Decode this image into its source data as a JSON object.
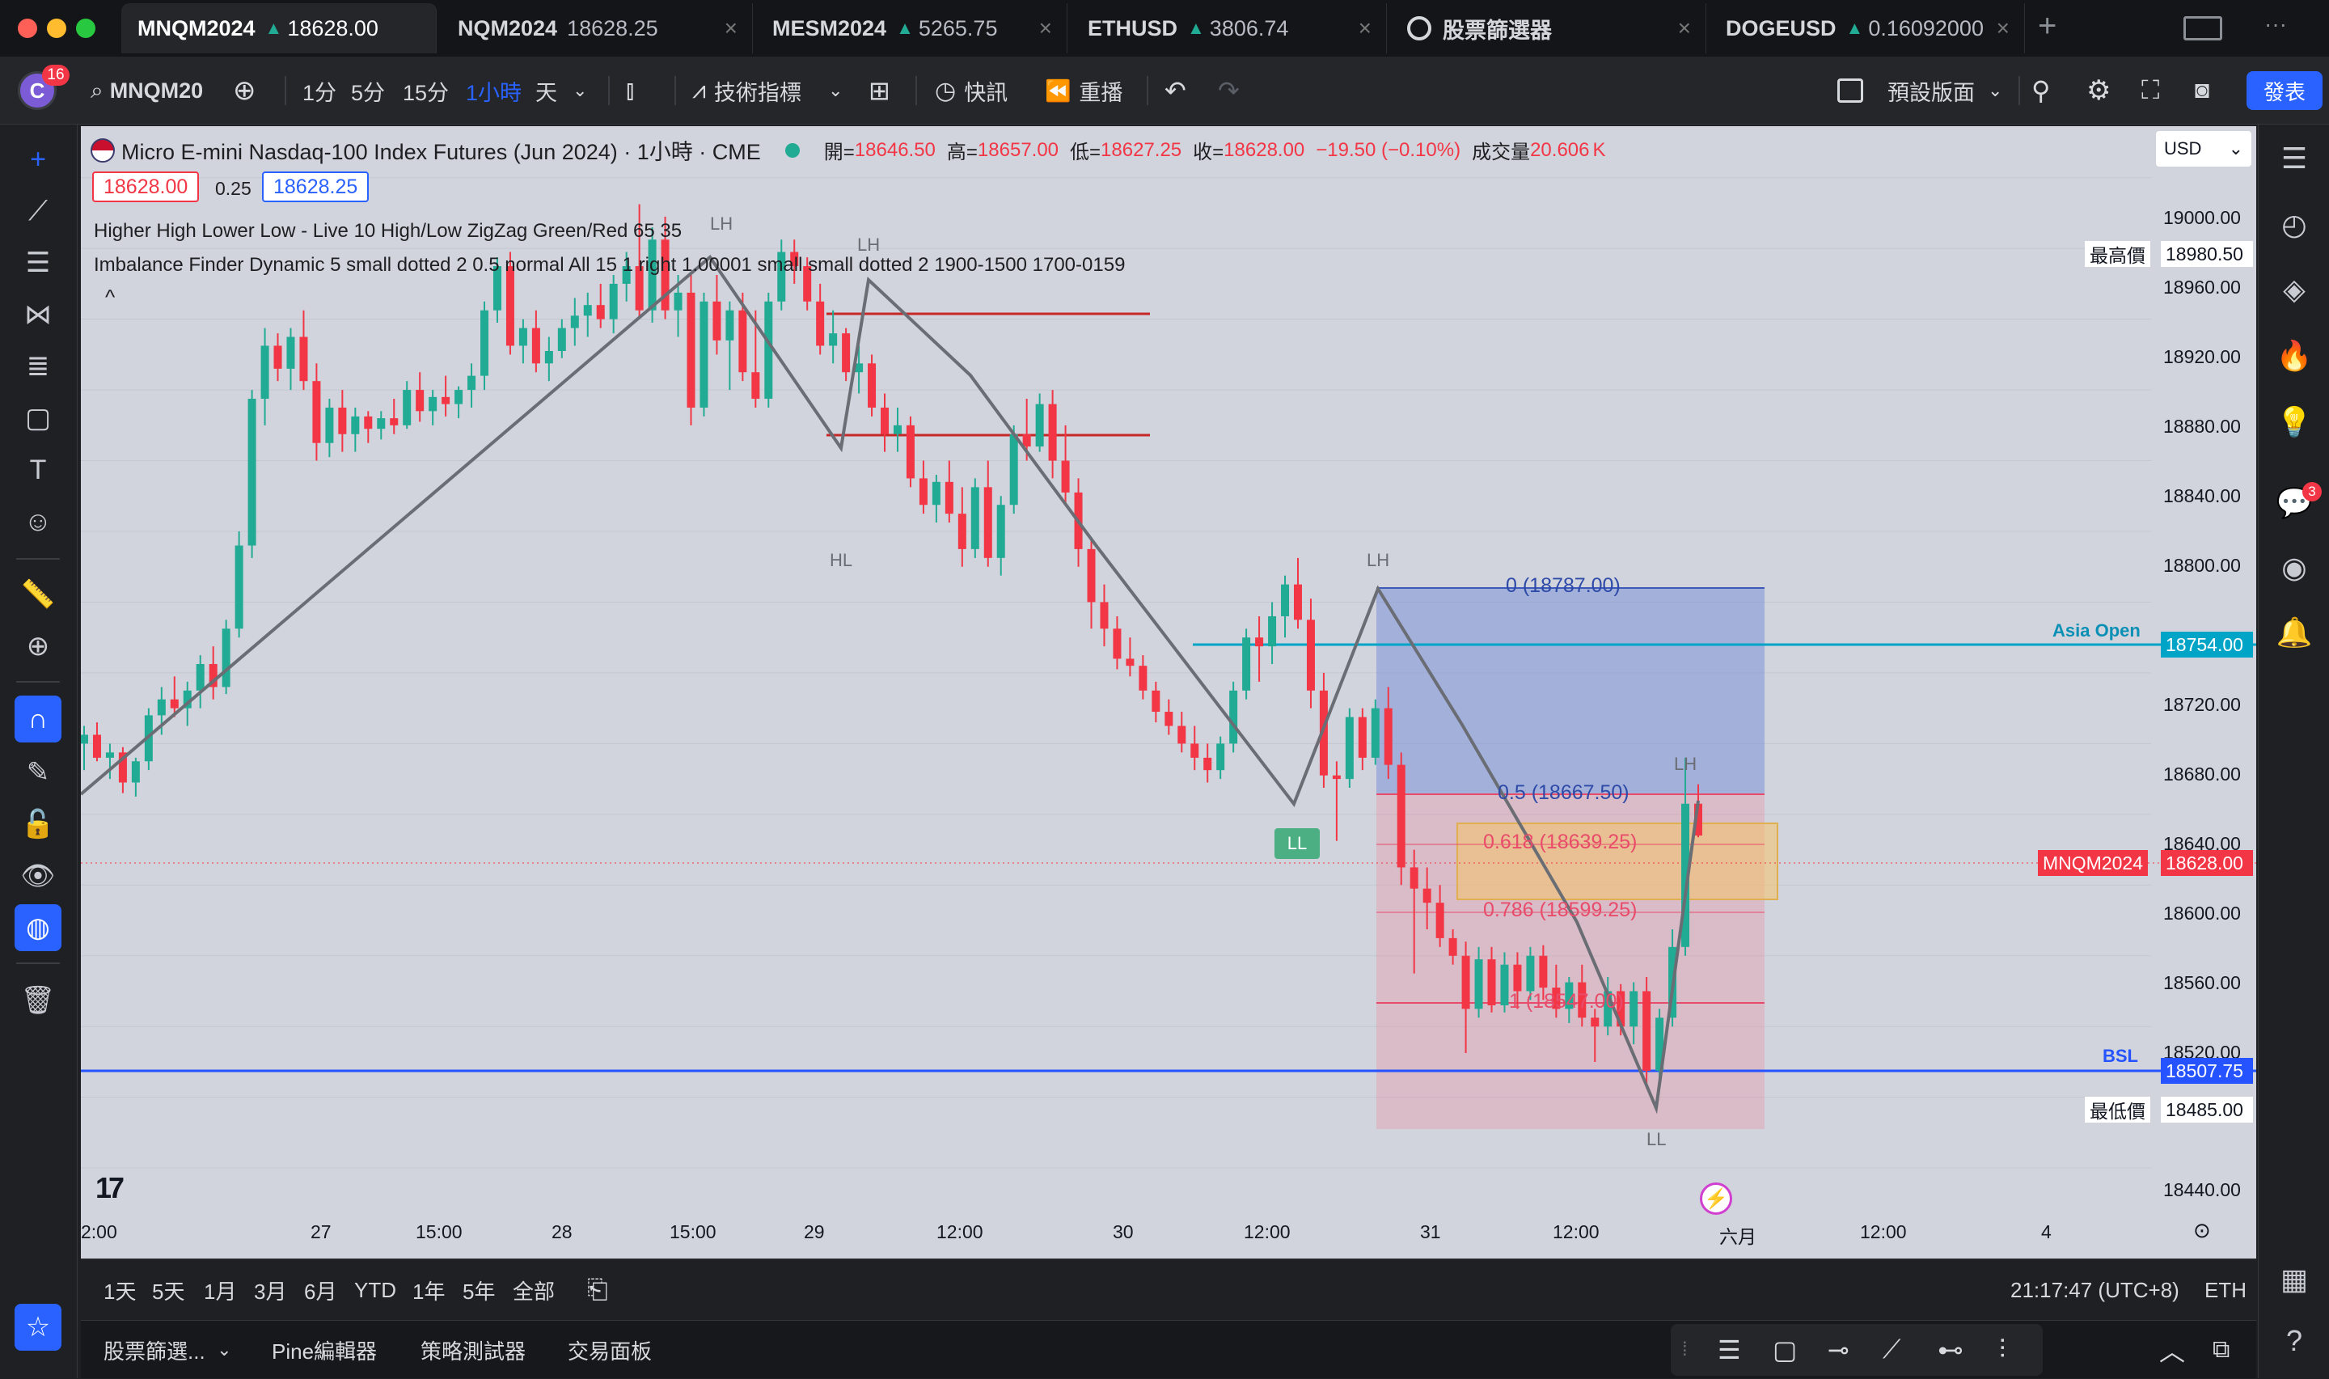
{
  "tabs": [
    {
      "symbol": "MNQM2024",
      "arrow": "▲",
      "price": "18628.00",
      "active": true
    },
    {
      "symbol": "NQM2024",
      "arrow": "",
      "price": "18628.25",
      "active": false
    },
    {
      "symbol": "MESM2024",
      "arrow": "▲",
      "price": "5265.75",
      "active": false
    },
    {
      "symbol": "ETHUSD",
      "arrow": "▲",
      "price": "3806.74",
      "active": false
    },
    {
      "symbol": "股票篩選器",
      "arrow": "",
      "price": "",
      "active": false
    },
    {
      "symbol": "DOGEUSD",
      "arrow": "▲",
      "price": "0.16092000",
      "active": false
    }
  ],
  "tab_new": "+",
  "toolbar": {
    "avatar_letter": "C",
    "notif_count": "16",
    "symbol": "MNQM20",
    "intervals": [
      "1分",
      "5分",
      "15分",
      "1小時",
      "天"
    ],
    "active_interval": "1小時",
    "indicators": "技術指標",
    "quick": "快訊",
    "replay": "重播",
    "layout": "預設版面",
    "publish": "發表"
  },
  "legend": {
    "title": "Micro E-mini Nasdaq-100 Index Futures (Jun 2024) · 1小時 · CME",
    "open_label": "開=",
    "open": "18646.50",
    "high_label": "高=",
    "high": "18657.00",
    "low_label": "低=",
    "low": "18627.25",
    "close_label": "收=",
    "close": "18628.00",
    "change": "−19.50 (−0.10%)",
    "volume_label": "成交量",
    "volume": "20.606",
    "volume_unit": "K",
    "bid": "18628.00",
    "spread": "0.25",
    "ask": "18628.25",
    "indicator1": "Higher High Lower Low - Live 10 High/Low ZigZag Green/Red 65 35",
    "indicator2": "Imbalance Finder Dynamic 5 small dotted 2 0.5 normal All 15 1 right 1.00001 small small dotted 2 1900-1500 1700-0159",
    "collapse": "^"
  },
  "currency": "USD",
  "price_axis": {
    "ticks": [
      "19000.00",
      "18960.00",
      "18920.00",
      "18880.00",
      "18840.00",
      "18800.00",
      "18760.00",
      "18720.00",
      "18680.00",
      "18640.00",
      "18600.00",
      "18560.00",
      "18520.00",
      "18440.00"
    ],
    "max_label": "最高價",
    "max_value": "18980.50",
    "min_label": "最低價",
    "min_value": "18485.00",
    "asia_open_label": "Asia Open",
    "asia_open_value": "18754.00",
    "bsl_label": "BSL",
    "bsl_value": "18507.75",
    "current_symbol": "MNQM2024",
    "current_value": "18628.00"
  },
  "time_axis": [
    "2:00",
    "27",
    "15:00",
    "28",
    "15:00",
    "29",
    "12:00",
    "30",
    "12:00",
    "31",
    "12:00",
    "六月",
    "12:00",
    "4"
  ],
  "fib": {
    "f0": "0 (18787.00)",
    "f05": "0.5 (18667.50)",
    "f0618": "0.618 (18639.25)",
    "f0786": "0.786 (18599.25)",
    "f1": "1 (18547.00)"
  },
  "zigzag_labels": [
    "LH",
    "LH",
    "HL",
    "LH",
    "LL",
    "LH",
    "LL"
  ],
  "chart_data": {
    "type": "candlestick",
    "symbol": "MNQM2024",
    "interval": "1h",
    "ylim": [
      18430,
      19020
    ],
    "candles": [
      [
        18680,
        18690,
        18665,
        18685
      ],
      [
        18685,
        18692,
        18670,
        18672
      ],
      [
        18672,
        18680,
        18660,
        18675
      ],
      [
        18675,
        18678,
        18652,
        18658
      ],
      [
        18658,
        18672,
        18650,
        18670
      ],
      [
        18670,
        18700,
        18665,
        18696
      ],
      [
        18696,
        18712,
        18685,
        18705
      ],
      [
        18705,
        18718,
        18695,
        18700
      ],
      [
        18700,
        18715,
        18690,
        18710
      ],
      [
        18710,
        18730,
        18700,
        18725
      ],
      [
        18725,
        18735,
        18705,
        18712
      ],
      [
        18712,
        18750,
        18708,
        18745
      ],
      [
        18745,
        18800,
        18740,
        18792
      ],
      [
        18792,
        18880,
        18785,
        18875
      ],
      [
        18875,
        18915,
        18860,
        18905
      ],
      [
        18905,
        18912,
        18885,
        18892
      ],
      [
        18892,
        18915,
        18880,
        18910
      ],
      [
        18910,
        18925,
        18880,
        18885
      ],
      [
        18885,
        18895,
        18840,
        18850
      ],
      [
        18850,
        18875,
        18842,
        18870
      ],
      [
        18870,
        18880,
        18845,
        18855
      ],
      [
        18855,
        18870,
        18845,
        18865
      ],
      [
        18865,
        18868,
        18850,
        18858
      ],
      [
        18858,
        18868,
        18852,
        18864
      ],
      [
        18864,
        18875,
        18855,
        18860
      ],
      [
        18860,
        18885,
        18858,
        18880
      ],
      [
        18880,
        18890,
        18862,
        18868
      ],
      [
        18868,
        18880,
        18860,
        18876
      ],
      [
        18876,
        18888,
        18865,
        18872
      ],
      [
        18872,
        18882,
        18864,
        18880
      ],
      [
        18880,
        18895,
        18870,
        18888
      ],
      [
        18888,
        18930,
        18880,
        18925
      ],
      [
        18925,
        18955,
        18918,
        18950
      ],
      [
        18950,
        18958,
        18900,
        18905
      ],
      [
        18905,
        18920,
        18895,
        18915
      ],
      [
        18915,
        18925,
        18890,
        18895
      ],
      [
        18895,
        18910,
        18885,
        18902
      ],
      [
        18902,
        18920,
        18898,
        18915
      ],
      [
        18915,
        18932,
        18905,
        18922
      ],
      [
        18922,
        18935,
        18910,
        18928
      ],
      [
        18928,
        18940,
        18915,
        18920
      ],
      [
        18920,
        18945,
        18912,
        18940
      ],
      [
        18940,
        18958,
        18930,
        18950
      ],
      [
        18950,
        18985,
        18920,
        18925
      ],
      [
        18925,
        18972,
        18918,
        18965
      ],
      [
        18965,
        18978,
        18920,
        18925
      ],
      [
        18925,
        18945,
        18910,
        18935
      ],
      [
        18935,
        18945,
        18860,
        18870
      ],
      [
        18870,
        18935,
        18865,
        18930
      ],
      [
        18930,
        18945,
        18900,
        18908
      ],
      [
        18908,
        18930,
        18880,
        18925
      ],
      [
        18925,
        18935,
        18885,
        18890
      ],
      [
        18890,
        18925,
        18870,
        18875
      ],
      [
        18875,
        18935,
        18870,
        18930
      ],
      [
        18930,
        18965,
        18925,
        18958
      ],
      [
        18958,
        18965,
        18940,
        18950
      ],
      [
        18950,
        18955,
        18925,
        18930
      ],
      [
        18930,
        18940,
        18900,
        18905
      ],
      [
        18905,
        18925,
        18895,
        18912
      ],
      [
        18912,
        18915,
        18885,
        18890
      ],
      [
        18890,
        18905,
        18878,
        18895
      ],
      [
        18895,
        18900,
        18865,
        18870
      ],
      [
        18870,
        18878,
        18845,
        18855
      ],
      [
        18855,
        18870,
        18845,
        18860
      ],
      [
        18860,
        18865,
        18825,
        18830
      ],
      [
        18830,
        18840,
        18810,
        18815
      ],
      [
        18815,
        18832,
        18805,
        18828
      ],
      [
        18828,
        18840,
        18805,
        18810
      ],
      [
        18810,
        18825,
        18780,
        18790
      ],
      [
        18790,
        18830,
        18785,
        18825
      ],
      [
        18825,
        18840,
        18780,
        18785
      ],
      [
        18785,
        18820,
        18775,
        18815
      ],
      [
        18815,
        18860,
        18810,
        18855
      ],
      [
        18855,
        18875,
        18840,
        18848
      ],
      [
        18848,
        18878,
        18845,
        18872
      ],
      [
        18872,
        18880,
        18830,
        18840
      ],
      [
        18840,
        18860,
        18815,
        18822
      ],
      [
        18822,
        18830,
        18780,
        18790
      ],
      [
        18790,
        18795,
        18745,
        18760
      ],
      [
        18760,
        18770,
        18735,
        18745
      ],
      [
        18745,
        18752,
        18722,
        18728
      ],
      [
        18728,
        18740,
        18718,
        18724
      ],
      [
        18724,
        18730,
        18705,
        18710
      ],
      [
        18710,
        18715,
        18692,
        18698
      ],
      [
        18698,
        18705,
        18685,
        18690
      ],
      [
        18690,
        18698,
        18675,
        18680
      ],
      [
        18680,
        18690,
        18665,
        18672
      ],
      [
        18672,
        18680,
        18658,
        18665
      ],
      [
        18665,
        18684,
        18660,
        18680
      ],
      [
        18680,
        18715,
        18675,
        18710
      ],
      [
        18710,
        18745,
        18705,
        18740
      ],
      [
        18740,
        18752,
        18715,
        18735
      ],
      [
        18735,
        18760,
        18725,
        18752
      ],
      [
        18752,
        18775,
        18740,
        18770
      ],
      [
        18770,
        18785,
        18745,
        18750
      ],
      [
        18750,
        18762,
        18700,
        18710
      ],
      [
        18710,
        18720,
        18655,
        18662
      ],
      [
        18662,
        18670,
        18625,
        18660
      ],
      [
        18660,
        18700,
        18655,
        18695
      ],
      [
        18695,
        18700,
        18665,
        18672
      ],
      [
        18672,
        18705,
        18668,
        18700
      ],
      [
        18700,
        18712,
        18660,
        18668
      ],
      [
        18668,
        18675,
        18600,
        18610
      ],
      [
        18610,
        18620,
        18550,
        18598
      ],
      [
        18598,
        18610,
        18575,
        18590
      ],
      [
        18590,
        18600,
        18565,
        18570
      ],
      [
        18570,
        18575,
        18555,
        18560
      ],
      [
        18560,
        18568,
        18505,
        18530
      ],
      [
        18530,
        18565,
        18525,
        18558
      ],
      [
        18558,
        18565,
        18528,
        18532
      ],
      [
        18532,
        18562,
        18528,
        18555
      ],
      [
        18555,
        18562,
        18530,
        18540
      ],
      [
        18540,
        18565,
        18535,
        18560
      ],
      [
        18560,
        18566,
        18535,
        18542
      ],
      [
        18542,
        18555,
        18525,
        18530
      ],
      [
        18530,
        18548,
        18522,
        18545
      ],
      [
        18545,
        18555,
        18520,
        18525
      ],
      [
        18525,
        18530,
        18500,
        18520
      ],
      [
        18520,
        18548,
        18515,
        18540
      ],
      [
        18540,
        18544,
        18515,
        18520
      ],
      [
        18520,
        18545,
        18510,
        18540
      ],
      [
        18540,
        18548,
        18485,
        18495
      ],
      [
        18495,
        18530,
        18490,
        18525
      ],
      [
        18525,
        18575,
        18520,
        18565
      ],
      [
        18565,
        18672,
        18560,
        18646
      ],
      [
        18646,
        18657,
        18627,
        18628
      ]
    ]
  }
}
